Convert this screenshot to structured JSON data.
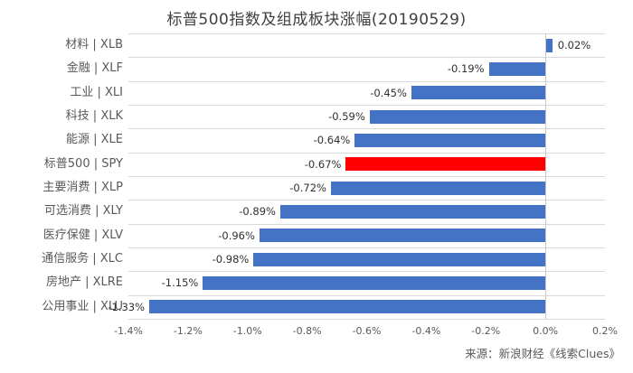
{
  "page": {
    "background": "#ffffff"
  },
  "chart_data": {
    "type": "bar",
    "orientation": "horizontal",
    "title": "标普500指数及组成板块涨幅(20190529)",
    "categories": [
      "材料 | XLB",
      "金融 | XLF",
      "工业 | XLI",
      "科技 | XLK",
      "能源 | XLE",
      "标普500 | SPY",
      "主要消费 | XLP",
      "可选消费 | XLY",
      "医疗保健 | XLV",
      "通信服务 | XLC",
      "房地产 | XLRE",
      "公用事业 | XLU"
    ],
    "values": [
      0.02,
      -0.19,
      -0.45,
      -0.59,
      -0.64,
      -0.67,
      -0.72,
      -0.89,
      -0.96,
      -0.98,
      -1.15,
      -1.33
    ],
    "value_labels": [
      "0.02%",
      "-0.19%",
      "-0.45%",
      "-0.59%",
      "-0.64%",
      "-0.67%",
      "-0.72%",
      "-0.89%",
      "-0.96%",
      "-0.98%",
      "-1.15%",
      "-1.33%"
    ],
    "highlight_index": 5,
    "xlim": [
      -1.4,
      0.2
    ],
    "x_ticks": [
      {
        "value": -1.4,
        "label": "-1.4%"
      },
      {
        "value": -1.2,
        "label": "-1.2%"
      },
      {
        "value": -1.0,
        "label": "-1.0%"
      },
      {
        "value": -0.8,
        "label": "-0.8%"
      },
      {
        "value": -0.6,
        "label": "-0.6%"
      },
      {
        "value": -0.4,
        "label": "-0.4%"
      },
      {
        "value": -0.2,
        "label": "-0.2%"
      },
      {
        "value": 0.0,
        "label": "0.0%"
      },
      {
        "value": 0.2,
        "label": "0.2%"
      }
    ],
    "grid": "horizontal-row-separators",
    "legend": "none",
    "colors": {
      "bar": "#4472c4",
      "highlight": "#ff0000",
      "gridline": "#d9d9d9",
      "axis_line": "#c8c8c8",
      "title_text": "#404040",
      "category_text": "#595959",
      "value_text": "#303030",
      "tick_text": "#595959"
    },
    "source": "来源：新浪财经《线索Clues》"
  }
}
